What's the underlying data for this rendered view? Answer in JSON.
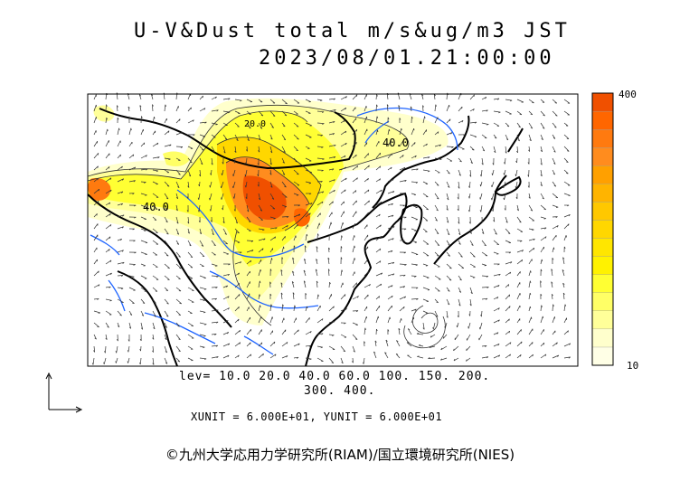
{
  "title": "U-V&Dust total m/s&ug/m3 JST",
  "datetime": "2023/08/01.21:00:00",
  "legend": {
    "levels_line1": "lev= 10.0 20.0 40.0 60.0 100. 150. 200.",
    "levels_line2": "300. 400."
  },
  "units_line": "XUNIT = 6.000E+01, YUNIT = 6.000E+01",
  "colorbar": {
    "max_label": "400",
    "min_label": "10",
    "colors": [
      "#ffffe6",
      "#ffffcc",
      "#ffff99",
      "#ffff66",
      "#ffff33",
      "#fff200",
      "#ffe600",
      "#ffd700",
      "#ffc800",
      "#ffb400",
      "#ffa000",
      "#ff8c1e",
      "#ff7a0f",
      "#ff6600",
      "#f05000"
    ]
  },
  "contour_labels": [
    "40.0",
    "40.0",
    "20.0"
  ],
  "credit": "©九州大学応用力学研究所(RIAM)/国立環境研究所(NIES)"
}
